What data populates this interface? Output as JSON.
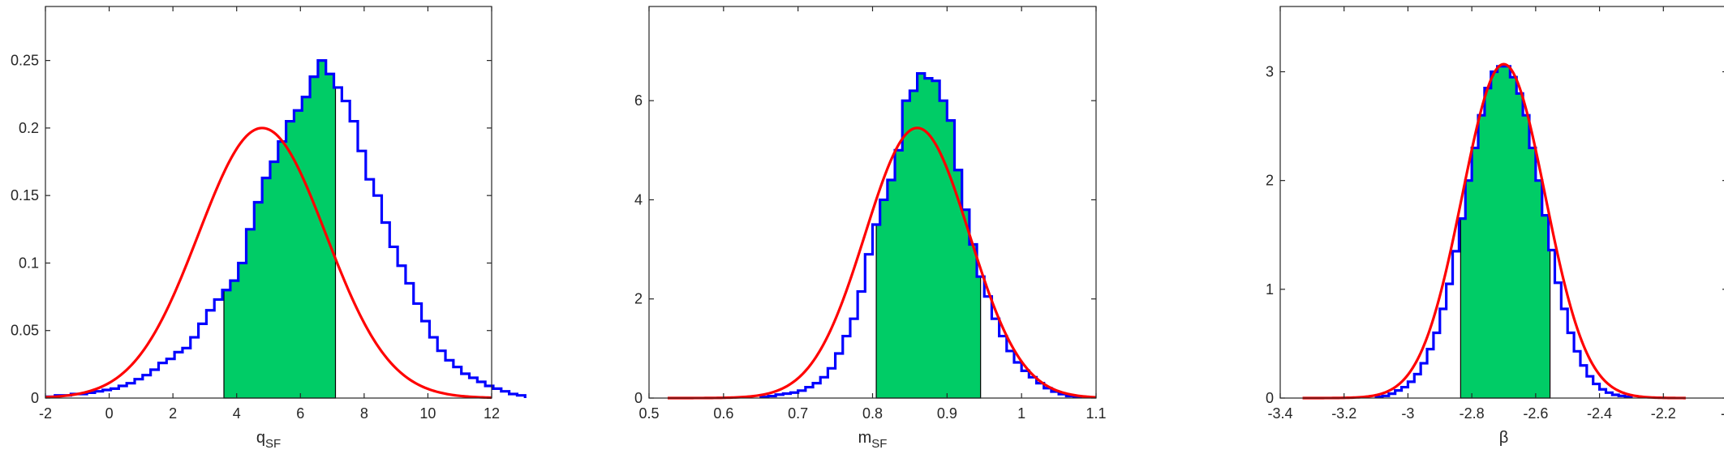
{
  "colors": {
    "histogram_edge": "#0000ff",
    "shaded_fill": "#00cc66",
    "fit_curve": "#ff0000",
    "axes": "#262626"
  },
  "chart_data": [
    {
      "type": "histogram",
      "xlabel": "q",
      "xlabel_sub": "SF",
      "ylabel": "",
      "title": "",
      "xlim": [
        -2,
        12
      ],
      "ylim": [
        0,
        0.29
      ],
      "xticks": [
        -2,
        0,
        2,
        4,
        6,
        8,
        10,
        12
      ],
      "xtick_labels": [
        "-2",
        "0",
        "2",
        "4",
        "6",
        "8",
        "10",
        "12"
      ],
      "yticks": [
        0,
        0.05,
        0.1,
        0.15,
        0.2,
        0.25
      ],
      "ytick_labels": [
        "0",
        "0.05",
        "0.1",
        "0.15",
        "0.2",
        "0.25"
      ],
      "grid": false,
      "bin_edges_start": -1.95,
      "bin_width": 0.25,
      "bin_heights": [
        0.001,
        0.002,
        0.002,
        0.003,
        0.003,
        0.004,
        0.005,
        0.006,
        0.007,
        0.009,
        0.011,
        0.014,
        0.017,
        0.021,
        0.026,
        0.029,
        0.034,
        0.037,
        0.045,
        0.055,
        0.065,
        0.073,
        0.08,
        0.087,
        0.1,
        0.125,
        0.145,
        0.163,
        0.175,
        0.19,
        0.205,
        0.213,
        0.223,
        0.238,
        0.25,
        0.24,
        0.23,
        0.22,
        0.205,
        0.183,
        0.162,
        0.15,
        0.13,
        0.112,
        0.098,
        0.085,
        0.07,
        0.057,
        0.045,
        0.035,
        0.028,
        0.023,
        0.018,
        0.015,
        0.012,
        0.009,
        0.007,
        0.005,
        0.003,
        0.002
      ],
      "shaded_interval": [
        3.6,
        7.1
      ],
      "fit_curve": {
        "distribution": "normal",
        "mean": 4.8,
        "sd": 2.0,
        "peak": 0.2,
        "x_range": [
          -2,
          12
        ]
      }
    },
    {
      "type": "histogram",
      "xlabel": "m",
      "xlabel_sub": "SF",
      "ylabel": "",
      "title": "",
      "xlim": [
        0.5,
        1.1
      ],
      "ylim": [
        0,
        7.9
      ],
      "xticks": [
        0.5,
        0.6,
        0.7,
        0.8,
        0.9,
        1.0,
        1.1
      ],
      "xtick_labels": [
        "0.5",
        "0.6",
        "0.7",
        "0.8",
        "0.9",
        "1",
        "1.1"
      ],
      "yticks": [
        0,
        2,
        4,
        6
      ],
      "ytick_labels": [
        "0",
        "2",
        "4",
        "6"
      ],
      "grid": false,
      "bin_edges_start": 0.65,
      "bin_width": 0.01,
      "bin_heights": [
        0.02,
        0.04,
        0.07,
        0.09,
        0.11,
        0.15,
        0.22,
        0.3,
        0.42,
        0.6,
        0.9,
        1.25,
        1.6,
        2.15,
        2.9,
        3.5,
        4.0,
        4.4,
        5.0,
        6.0,
        6.2,
        6.55,
        6.45,
        6.4,
        6.0,
        5.6,
        4.6,
        3.8,
        3.1,
        2.45,
        2.05,
        1.6,
        1.25,
        0.95,
        0.72,
        0.55,
        0.42,
        0.3,
        0.2,
        0.13,
        0.08,
        0.04,
        0.02
      ],
      "shaded_interval": [
        0.805,
        0.945
      ],
      "fit_curve": {
        "distribution": "normal",
        "mean": 0.86,
        "sd": 0.07,
        "peak": 5.45,
        "x_range": [
          0.525,
          1.1
        ]
      }
    },
    {
      "type": "histogram",
      "xlabel": "β",
      "xlabel_sub": "",
      "ylabel": "",
      "title": "",
      "xlim": [
        -3.4,
        -2.0
      ],
      "ylim": [
        0,
        3.6
      ],
      "xticks": [
        -3.4,
        -3.2,
        -3.0,
        -2.8,
        -2.6,
        -2.4,
        -2.2,
        -2.0
      ],
      "xtick_labels": [
        "-3.4",
        "-3.2",
        "-3",
        "-2.8",
        "-2.6",
        "-2.4",
        "-2.2",
        "-2"
      ],
      "yticks": [
        0,
        1,
        2,
        3
      ],
      "ytick_labels": [
        "0",
        "1",
        "2",
        "3"
      ],
      "grid": false,
      "bin_edges_start": -3.1,
      "bin_width": 0.02,
      "bin_heights": [
        0.01,
        0.02,
        0.04,
        0.07,
        0.1,
        0.15,
        0.22,
        0.32,
        0.45,
        0.6,
        0.82,
        1.05,
        1.35,
        1.65,
        2.0,
        2.3,
        2.6,
        2.85,
        3.0,
        3.05,
        3.05,
        2.95,
        2.8,
        2.6,
        2.3,
        2.0,
        1.68,
        1.36,
        1.06,
        0.82,
        0.6,
        0.43,
        0.3,
        0.2,
        0.13,
        0.08,
        0.05,
        0.03,
        0.02,
        0.01
      ],
      "shaded_interval": [
        -2.835,
        -2.555
      ],
      "fit_curve": {
        "distribution": "normal",
        "mean": -2.7,
        "sd": 0.13,
        "peak": 3.07,
        "x_range": [
          -3.33,
          -2.13
        ]
      }
    }
  ]
}
